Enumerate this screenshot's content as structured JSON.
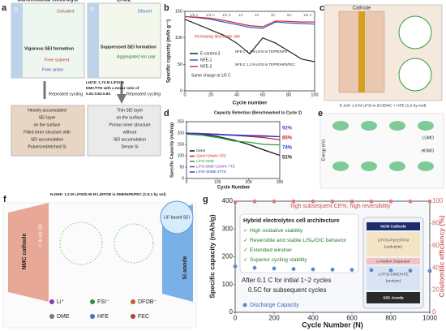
{
  "panel_labels": [
    "a",
    "b",
    "c",
    "d",
    "e",
    "f",
    "g"
  ],
  "panel_a": {
    "left_title": "Conventional electrolyte",
    "right_title": "LHCE",
    "si": "Si",
    "solvated": "Solvated",
    "vigorous": "Vigorous SEI formation",
    "free_solvent": "Free solvent",
    "free_anion": "Free anion",
    "diluent": "Diluent",
    "suppressed": "Suppressed SEI formation",
    "aggregated": "Aggregated ion pair",
    "recipe": [
      "LHCE: 1.74 M LiFSI in",
      "DMC/TTE with a molar ratio of",
      "0.51:0.84:0.84"
    ],
    "cycling": "Repeated cycling",
    "left_bottom": [
      "Heavily accumulated",
      "SEI layer",
      "on the surface",
      "Filled inner structure with",
      "SEI accumulation",
      "Pulverized/etched Si"
    ],
    "right_bottom": [
      "Thin SEI layer",
      "on the surface",
      "Porous inner structure",
      "without",
      "SEI accumulation",
      "Dense Si"
    ]
  },
  "panel_c": {
    "cathode": "Cathode",
    "caption": "E-104: 1.8 M LiFSI in EC/EMC + HFE (1:2 by mol)"
  },
  "panel_e": {
    "lumo": "LUMO",
    "homo": "HOMO",
    "axis": "Energy (eV)"
  },
  "panel_f": {
    "recipe": "N-DHE: 1.2 M LiFSI/0.05 M LiDFOB in DME/HFE/FEC (1:6:1 by vol)",
    "cathode": "NMC cathode",
    "anode": "Si anode",
    "cei": "F, B-rich CEI",
    "sei": "LiF-based SEI",
    "legend": [
      "Li⁺",
      "FSI⁻",
      "DFOB⁻",
      "DME",
      "HFE",
      "FEC"
    ]
  },
  "chart_data": [
    {
      "type": "line",
      "x_label": "Cycle number",
      "y_label": "Specific capacity (mAh g⁻¹)",
      "xlim": [
        0,
        100
      ],
      "xticks": [
        0,
        20,
        40,
        60,
        80,
        100
      ],
      "ylim": [
        0,
        150
      ],
      "yticks": [
        0,
        50,
        100,
        150
      ],
      "rates": [
        "1/5 C",
        "1/3 C",
        "1/2 C",
        "1C",
        "2C",
        "3C",
        "5C",
        "1/5 C"
      ],
      "annotations": [
        "Increasing discharge rate",
        "Same charge at 1/5 C",
        "NFE-1: 1.2 M LiFSI in TEPFE/HFE",
        "NFE-2: 1.2 M LiFSI in TEPFE/HFE/FEC"
      ],
      "x": [
        0,
        10,
        20,
        30,
        40,
        50,
        60,
        70,
        80,
        90,
        100
      ],
      "series": [
        {
          "name": "E-control-3",
          "color": "#222222",
          "values": [
            135,
            125,
            115,
            105,
            90,
            70,
            100,
            90,
            75,
            60,
            55
          ]
        },
        {
          "name": "NFE-1",
          "color": "#2f5fd0",
          "values": [
            140,
            138,
            135,
            130,
            125,
            120,
            118,
            130,
            128,
            127,
            126
          ]
        },
        {
          "name": "NFE-2",
          "color": "#d03030",
          "values": [
            140,
            139,
            137,
            133,
            128,
            123,
            121,
            132,
            131,
            130,
            130
          ]
        }
      ]
    },
    {
      "type": "line",
      "title": "Capacity Retention (Benchmarked to Cycle 2)",
      "x_label": "Cycle Number",
      "y_label": "Specific Capacity (mAh/g)",
      "xlim": [
        0,
        300
      ],
      "xticks": [
        0,
        100,
        200,
        300
      ],
      "ylim": [
        0,
        250
      ],
      "yticks": [
        0,
        50,
        100,
        150,
        200,
        250
      ],
      "retention_labels": [
        "92%",
        "85%",
        "74%",
        "51%"
      ],
      "x": [
        0,
        50,
        100,
        150,
        200,
        250,
        300
      ],
      "series": [
        {
          "name": "GenII",
          "color": "#111111",
          "values": [
            200,
            195,
            185,
            170,
            150,
            125,
            102
          ]
        },
        {
          "name": "GenII+10wt% FEC",
          "color": "#d02020",
          "values": [
            200,
            198,
            195,
            190,
            185,
            180,
            170
          ]
        },
        {
          "name": "LiFSI-DME",
          "color": "#20a040",
          "values": [
            195,
            190,
            180,
            165,
            160,
            150,
            148
          ]
        },
        {
          "name": "LiFSI-DME+10wt% TTE",
          "color": "#8030b0",
          "values": [
            200,
            198,
            195,
            192,
            190,
            188,
            184
          ]
        },
        {
          "name": "LiFSI-3DME-3TTE",
          "color": "#2040d0",
          "values": [
            198,
            196,
            193,
            190,
            188,
            186,
            184
          ]
        }
      ]
    },
    {
      "type": "scatter",
      "x_label": "Cycle Number (N)",
      "y_label": "Specific capacity (mAh/g)",
      "y2_label": "Coulombic efficiency (%)",
      "xlim": [
        0,
        1000
      ],
      "xticks": [
        0,
        200,
        400,
        600,
        800,
        1000
      ],
      "ylim": [
        0,
        400
      ],
      "yticks": [
        0,
        100,
        200,
        300,
        400
      ],
      "y2lim": [
        0,
        100
      ],
      "y2ticks": [
        0,
        20,
        40,
        60,
        80,
        100
      ],
      "ce_note": "high subsequent CE%, high reversibility",
      "box_title": "Hybrid electrolytes cell architecture",
      "bullets": [
        "High oxidative stability",
        "Reversible and stable LiSiₓ/GIC behavior",
        "Extended window",
        "Superior cycling stability"
      ],
      "rate_note": [
        "After 0.1 C for initial 1~2 cycles",
        "0.5C for subsequent cycles"
      ],
      "cell_layers": [
        "NCM Cathode",
        "LiTFSI-Pyr13TFSI",
        "(catholyte)",
        "Li-Nafion Separator",
        "LiTFSI-DME/HFE",
        "(anolyte)",
        "Si/C Anode"
      ],
      "x": [
        0,
        100,
        200,
        300,
        400,
        500,
        600,
        700,
        800,
        900,
        1000
      ],
      "series": [
        {
          "name": "Discharge Capacity",
          "color": "#5a8ad0",
          "values": [
            165,
            160,
            158,
            156,
            155,
            154,
            153,
            152,
            151,
            150,
            149
          ]
        },
        {
          "name": "Coulombic efficiency",
          "color": "#e07a7a",
          "axis": "y2",
          "values": [
            99,
            99.8,
            99.8,
            99.8,
            99.8,
            99.8,
            99.8,
            99.8,
            99.8,
            99.8,
            99.8
          ]
        }
      ]
    }
  ]
}
